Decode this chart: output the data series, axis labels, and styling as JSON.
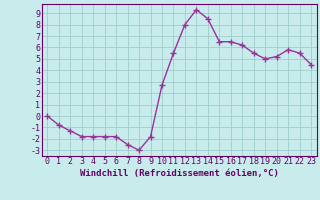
{
  "x": [
    0,
    1,
    2,
    3,
    4,
    5,
    6,
    7,
    8,
    9,
    10,
    11,
    12,
    13,
    14,
    15,
    16,
    17,
    18,
    19,
    20,
    21,
    22,
    23
  ],
  "y": [
    0,
    -0.8,
    -1.3,
    -1.8,
    -1.8,
    -1.8,
    -1.8,
    -2.5,
    -3.0,
    -1.8,
    2.7,
    5.5,
    8.0,
    9.3,
    8.5,
    6.5,
    6.5,
    6.2,
    5.5,
    5.0,
    5.2,
    5.8,
    5.5,
    4.5
  ],
  "line_color": "#993399",
  "marker": "+",
  "marker_size": 4,
  "marker_linewidth": 1.0,
  "bg_color": "#c8ecec",
  "grid_color": "#a0cccc",
  "xlabel": "Windchill (Refroidissement éolien,°C)",
  "xlabel_fontsize": 6.5,
  "ylim": [
    -3.5,
    9.8
  ],
  "xlim": [
    -0.5,
    23.5
  ],
  "yticks": [
    -3,
    -2,
    -1,
    0,
    1,
    2,
    3,
    4,
    5,
    6,
    7,
    8,
    9
  ],
  "xticks": [
    0,
    1,
    2,
    3,
    4,
    5,
    6,
    7,
    8,
    9,
    10,
    11,
    12,
    13,
    14,
    15,
    16,
    17,
    18,
    19,
    20,
    21,
    22,
    23
  ],
  "tick_fontsize": 6.0,
  "tick_color": "#660066",
  "line_width": 1.0,
  "spine_color": "#660066"
}
